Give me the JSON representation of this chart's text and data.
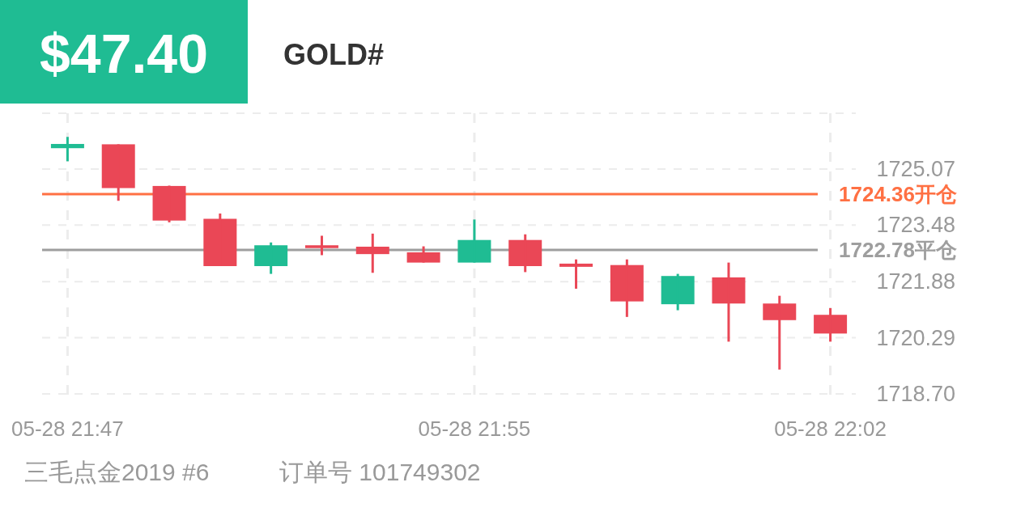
{
  "chart_data": {
    "type": "candlestick",
    "title": "GOLD#",
    "subtitle": "$47.40",
    "categories": [
      "05-28 21:47",
      null,
      null,
      null,
      null,
      null,
      null,
      null,
      "05-28 21:55",
      null,
      null,
      null,
      null,
      null,
      null,
      "05-28 22:02"
    ],
    "ohlc": [
      [
        1725.66,
        1725.98,
        1725.29,
        1725.78
      ],
      [
        1725.77,
        1725.77,
        1724.17,
        1724.53
      ],
      [
        1724.59,
        1724.6,
        1723.56,
        1723.61
      ],
      [
        1723.66,
        1723.81,
        1722.32,
        1722.32
      ],
      [
        1722.32,
        1722.99,
        1722.1,
        1722.91
      ],
      [
        1722.91,
        1723.18,
        1722.63,
        1722.83
      ],
      [
        1722.87,
        1723.24,
        1722.13,
        1722.66
      ],
      [
        1722.71,
        1722.88,
        1722.42,
        1722.42
      ],
      [
        1722.42,
        1723.64,
        1722.42,
        1723.06
      ],
      [
        1723.06,
        1723.22,
        1722.15,
        1722.32
      ],
      [
        1722.39,
        1722.51,
        1721.68,
        1722.3
      ],
      [
        1722.35,
        1722.51,
        1720.88,
        1721.32
      ],
      [
        1721.24,
        1722.1,
        1721.07,
        1722.04
      ],
      [
        1722.0,
        1722.42,
        1720.18,
        1721.26
      ],
      [
        1721.26,
        1721.48,
        1719.39,
        1720.79
      ],
      [
        1720.94,
        1721.13,
        1720.18,
        1720.41
      ]
    ],
    "colors": [
      "#1fbc93",
      "#ea4756",
      "#ea4756",
      "#ea4756",
      "#1fbc93",
      "#ea4756",
      "#ea4756",
      "#ea4756",
      "#1fbc93",
      "#ea4756",
      "#ea4756",
      "#ea4756",
      "#1fbc93",
      "#ea4756",
      "#ea4756",
      "#ea4756"
    ],
    "ylim": [
      1718.7,
      1726.65
    ],
    "yticks": [
      {
        "value": 1718.7,
        "label": "1718.70"
      },
      1720.29,
      1721.88,
      1723.48,
      1725.07
    ],
    "grid": true,
    "ref_lines": [
      {
        "axis": "y",
        "value": 1724.36,
        "label": "1724.36开仓",
        "color": "#ff7043"
      },
      {
        "axis": "y",
        "value": 1722.78,
        "label": "1722.78平仓",
        "color": "#9e9e9e"
      }
    ],
    "annotations": [
      "三毛点金2019 #6",
      "订单号 101749302"
    ]
  }
}
